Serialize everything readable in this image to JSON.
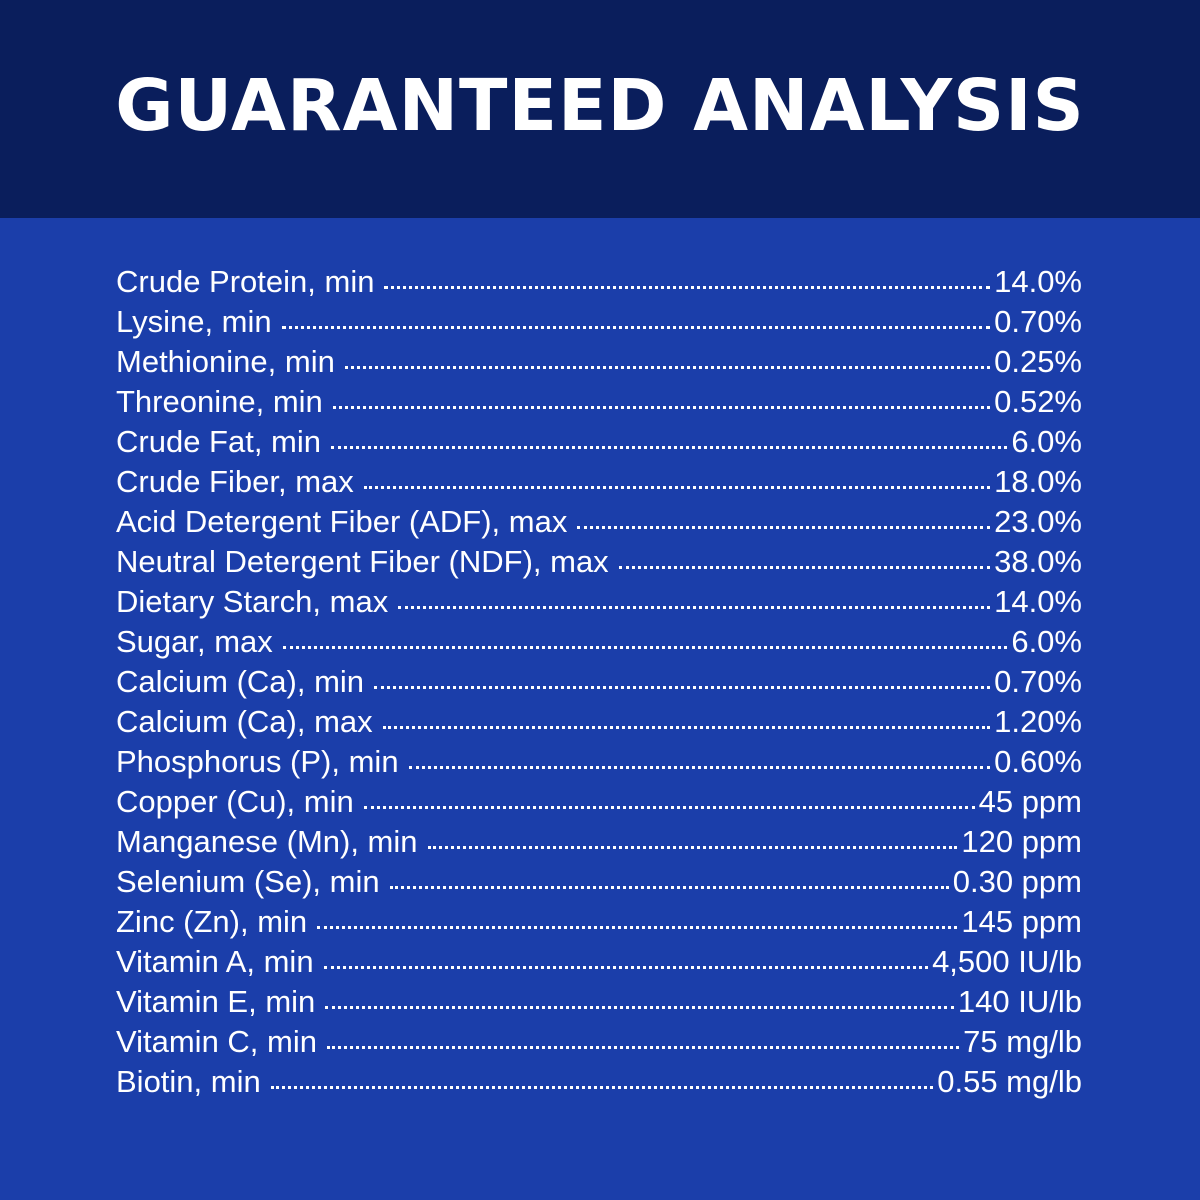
{
  "header": {
    "title": "GUARANTEED ANALYSIS"
  },
  "analysis": [
    {
      "label": "Crude Protein, min",
      "value": "14.0%"
    },
    {
      "label": "Lysine, min",
      "value": "0.70%"
    },
    {
      "label": "Methionine, min",
      "value": "0.25%"
    },
    {
      "label": "Threonine, min",
      "value": "0.52%"
    },
    {
      "label": "Crude Fat, min",
      "value": "6.0%"
    },
    {
      "label": "Crude Fiber, max",
      "value": "18.0%"
    },
    {
      "label": "Acid Detergent Fiber (ADF), max",
      "value": "23.0%"
    },
    {
      "label": "Neutral Detergent Fiber (NDF), max",
      "value": "38.0%"
    },
    {
      "label": "Dietary Starch, max",
      "value": "14.0%"
    },
    {
      "label": "Sugar, max",
      "value": "6.0%"
    },
    {
      "label": "Calcium (Ca), min",
      "value": "0.70%"
    },
    {
      "label": "Calcium (Ca), max",
      "value": "1.20%"
    },
    {
      "label": "Phosphorus (P), min",
      "value": "0.60%"
    },
    {
      "label": "Copper (Cu), min",
      "value": "45 ppm"
    },
    {
      "label": "Manganese (Mn), min",
      "value": "120 ppm"
    },
    {
      "label": "Selenium (Se), min",
      "value": "0.30 ppm"
    },
    {
      "label": "Zinc (Zn), min",
      "value": "145 ppm"
    },
    {
      "label": "Vitamin A, min",
      "value": "4,500 IU/lb"
    },
    {
      "label": "Vitamin E, min",
      "value": "140 IU/lb"
    },
    {
      "label": "Vitamin C, min",
      "value": "75 mg/lb"
    },
    {
      "label": "Biotin, min",
      "value": "0.55 mg/lb"
    }
  ],
  "colors": {
    "header_background": "#0a1e5c",
    "body_background": "#1b3eaa",
    "text": "#ffffff"
  }
}
